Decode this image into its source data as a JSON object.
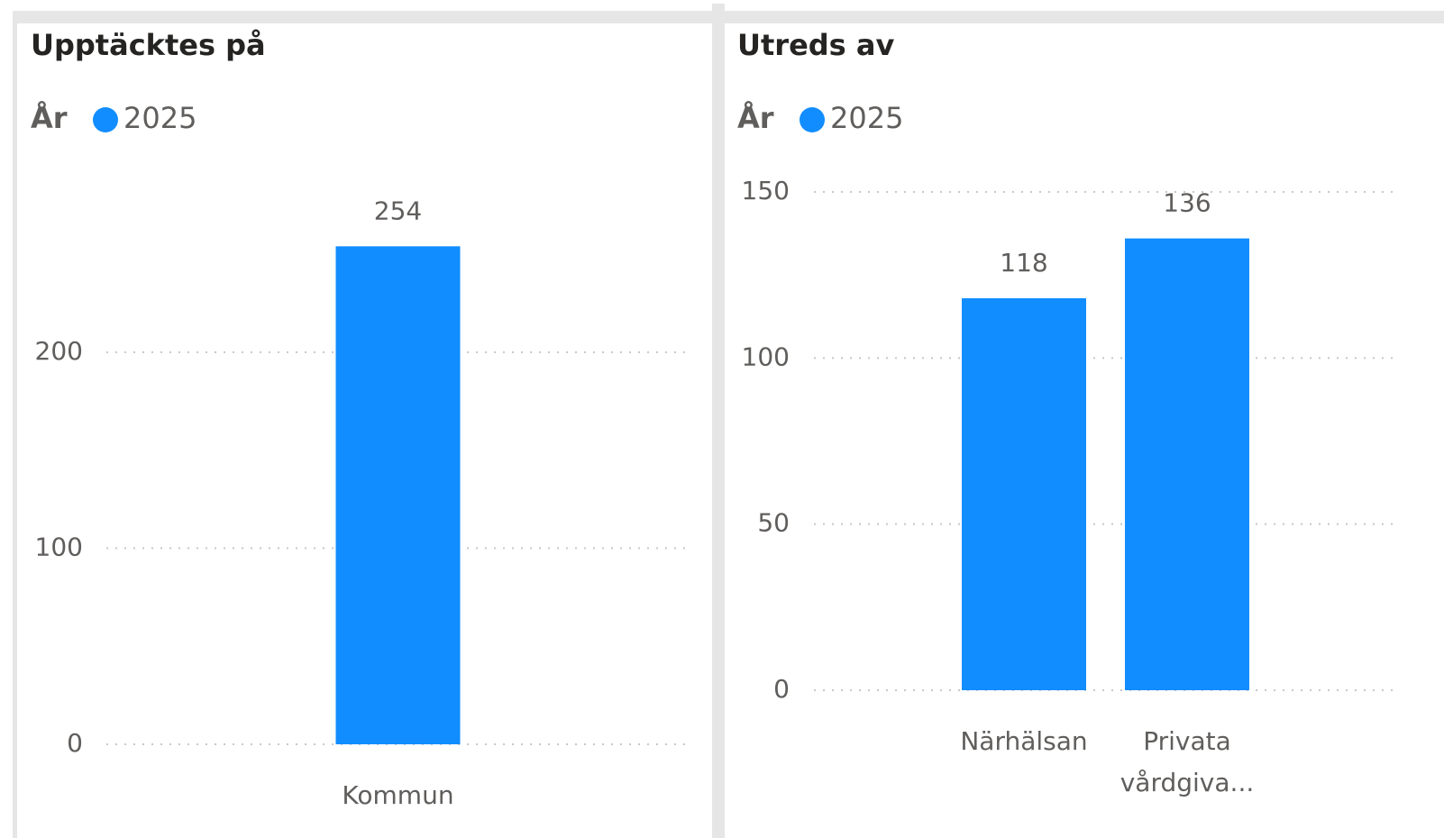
{
  "chart_data": [
    {
      "type": "bar",
      "title": "Upptäcktes på",
      "legend_title": "År",
      "categories": [
        "Kommun"
      ],
      "series": [
        {
          "name": "2025",
          "color": "#118dff",
          "values": [
            254
          ]
        }
      ],
      "ylim": [
        0,
        290
      ],
      "yticks": [
        0,
        100,
        200
      ],
      "grid": true
    },
    {
      "type": "bar",
      "title": "Utreds av",
      "legend_title": "År",
      "categories": [
        "Närhälsan",
        "Privata vårdgiva..."
      ],
      "series": [
        {
          "name": "2025",
          "color": "#118dff",
          "values": [
            118,
            136
          ]
        }
      ],
      "ylim": [
        0,
        150
      ],
      "yticks": [
        0,
        50,
        100,
        150
      ],
      "grid": true
    }
  ]
}
